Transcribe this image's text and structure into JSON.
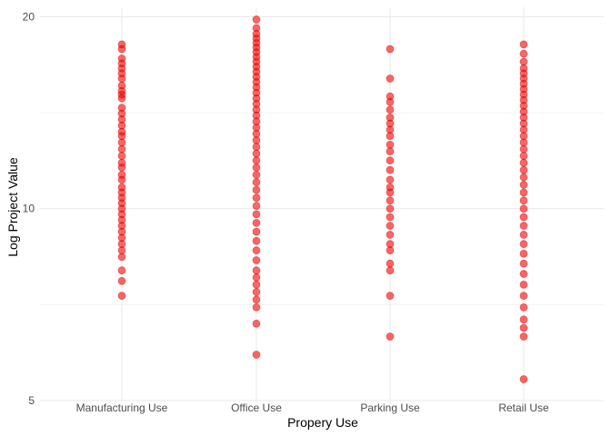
{
  "chart_data": {
    "type": "scatter",
    "xlabel": "Propery Use",
    "ylabel": "Log Project Value",
    "categories": [
      "Manufacturing Use",
      "Office Use",
      "Parking Use",
      "Retail Use"
    ],
    "y_scale": "log",
    "y_ticks": [
      5,
      10,
      20
    ],
    "y_tick_labels": [
      "5",
      "10",
      "20"
    ],
    "ylim": [
      4.95,
      20.7
    ],
    "grid": true,
    "legend": "none",
    "point_color": "#ff0000",
    "series": [
      {
        "category": "Manufacturing Use",
        "values": [
          18.1,
          17.8,
          17.2,
          16.9,
          16.6,
          16.3,
          16.0,
          15.6,
          15.3,
          15.1,
          14.9,
          14.4,
          14.1,
          13.8,
          13.5,
          13.2,
          13.0,
          12.7,
          12.4,
          12.1,
          11.8,
          11.6,
          11.3,
          11.1,
          10.8,
          10.6,
          10.4,
          10.2,
          10.0,
          9.8,
          9.6,
          9.4,
          9.2,
          8.8,
          8.4,
          8.0,
          7.7,
          7.3,
          8.6,
          9.0
        ]
      },
      {
        "category": "Office Use",
        "values": [
          19.8,
          19.2,
          18.8,
          18.5,
          18.2,
          17.9,
          17.6,
          17.3,
          17.0,
          16.7,
          16.4,
          16.1,
          15.8,
          15.5,
          15.2,
          14.9,
          14.6,
          14.3,
          14.0,
          13.7,
          13.4,
          13.1,
          12.8,
          12.5,
          12.2,
          11.9,
          11.6,
          11.3,
          11.0,
          10.7,
          10.4,
          10.1,
          9.8,
          9.5,
          9.2,
          8.9,
          8.6,
          8.3,
          8.0,
          7.8,
          7.6,
          7.4,
          7.2,
          7.0,
          6.6,
          5.9
        ]
      },
      {
        "category": "Parking Use",
        "values": [
          17.8,
          16.0,
          15.0,
          14.7,
          14.3,
          13.9,
          13.6,
          13.3,
          13.0,
          12.6,
          12.3,
          11.9,
          11.5,
          11.1,
          10.8,
          10.6,
          10.3,
          10.0,
          9.7,
          9.4,
          9.1,
          8.8,
          8.6,
          8.2,
          8.0,
          7.3,
          6.3
        ]
      },
      {
        "category": "Retail Use",
        "values": [
          18.1,
          17.5,
          17.0,
          16.6,
          16.3,
          16.0,
          15.7,
          15.4,
          15.1,
          14.8,
          14.5,
          14.2,
          13.9,
          13.6,
          13.3,
          13.0,
          12.7,
          12.4,
          12.1,
          11.8,
          11.5,
          11.2,
          10.9,
          10.6,
          10.3,
          10.0,
          9.7,
          9.4,
          9.1,
          8.8,
          8.5,
          8.2,
          7.9,
          7.6,
          7.3,
          7.0,
          6.7,
          6.5,
          6.3,
          5.4
        ]
      }
    ]
  }
}
